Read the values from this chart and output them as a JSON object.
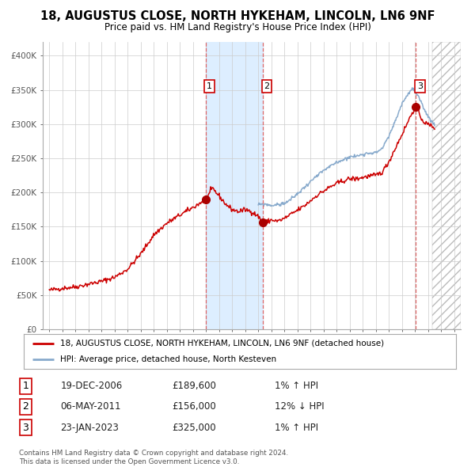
{
  "title": "18, AUGUSTUS CLOSE, NORTH HYKEHAM, LINCOLN, LN6 9NF",
  "subtitle": "Price paid vs. HM Land Registry's House Price Index (HPI)",
  "legend_line1": "18, AUGUSTUS CLOSE, NORTH HYKEHAM, LINCOLN, LN6 9NF (detached house)",
  "legend_line2": "HPI: Average price, detached house, North Kesteven",
  "footer1": "Contains HM Land Registry data © Crown copyright and database right 2024.",
  "footer2": "This data is licensed under the Open Government Licence v3.0.",
  "purchases": [
    {
      "num": 1,
      "date": "19-DEC-2006",
      "price": 189600,
      "pct": "1%",
      "dir": "↑"
    },
    {
      "num": 2,
      "date": "06-MAY-2011",
      "price": 156000,
      "pct": "12%",
      "dir": "↓"
    },
    {
      "num": 3,
      "date": "23-JAN-2023",
      "price": 325000,
      "pct": "1%",
      "dir": "↑"
    }
  ],
  "purchase_dates_decimal": [
    2006.97,
    2011.35,
    2023.07
  ],
  "purchase_prices": [
    189600,
    156000,
    325000
  ],
  "shade_start": 2006.97,
  "shade_end": 2011.35,
  "red_line_color": "#cc0000",
  "blue_line_color": "#88aacc",
  "shade_color": "#ddeeff",
  "dashed_line_color": "#dd6666",
  "dot_color": "#aa0000",
  "background_color": "#ffffff",
  "grid_color": "#cccccc",
  "ylim": [
    0,
    420000
  ],
  "xlim_start": 1994.5,
  "xlim_end": 2026.5,
  "yticks": [
    0,
    50000,
    100000,
    150000,
    200000,
    250000,
    300000,
    350000,
    400000
  ],
  "ytick_labels": [
    "£0",
    "£50K",
    "£100K",
    "£150K",
    "£200K",
    "£250K",
    "£300K",
    "£350K",
    "£400K"
  ],
  "xticks": [
    1995,
    1996,
    1997,
    1998,
    1999,
    2000,
    2001,
    2002,
    2003,
    2004,
    2005,
    2006,
    2007,
    2008,
    2009,
    2010,
    2011,
    2012,
    2013,
    2014,
    2015,
    2016,
    2017,
    2018,
    2019,
    2020,
    2021,
    2022,
    2023,
    2024,
    2025,
    2026
  ]
}
